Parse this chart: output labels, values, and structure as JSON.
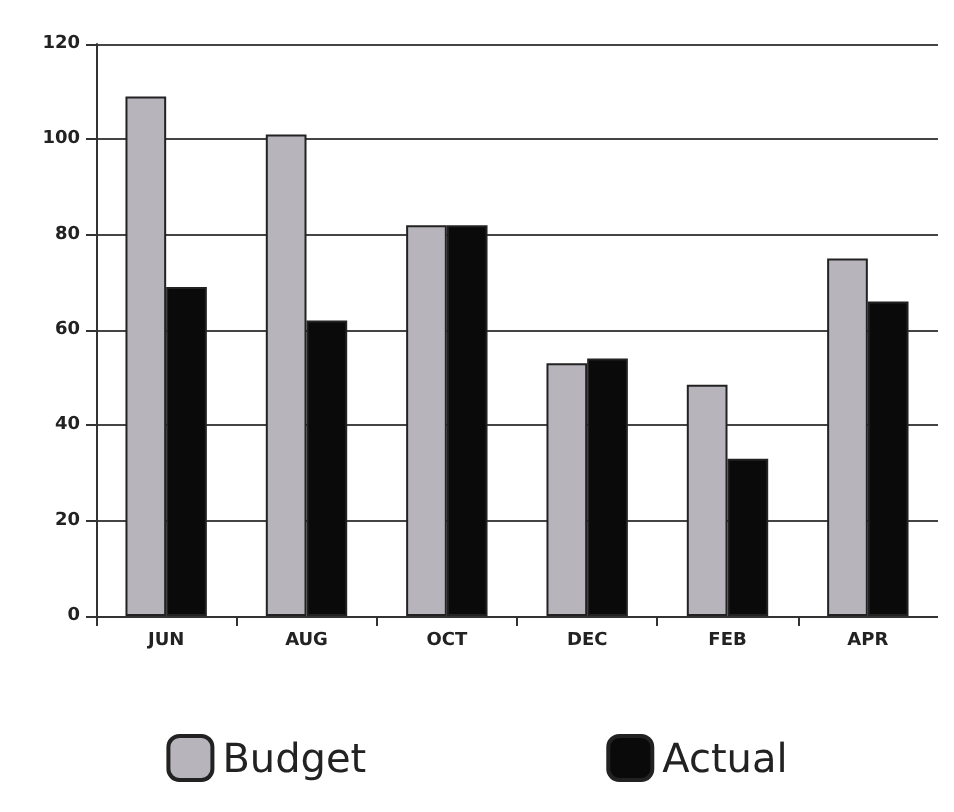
{
  "chart_data": {
    "type": "bar",
    "categories": [
      "JUN",
      "AUG",
      "OCT",
      "DEC",
      "FEB",
      "APR"
    ],
    "series": [
      {
        "name": "Budget",
        "color": "#b8b4bc",
        "values": [
          109,
          101,
          82,
          53,
          48.5,
          75
        ]
      },
      {
        "name": "Actual",
        "color": "#0a0a0a",
        "values": [
          69,
          62,
          82,
          54,
          33,
          66
        ]
      }
    ],
    "ylim": [
      0,
      120
    ],
    "yticks": [
      0,
      20,
      40,
      60,
      80,
      100,
      120
    ],
    "grid": "y",
    "legend": "bottom"
  }
}
